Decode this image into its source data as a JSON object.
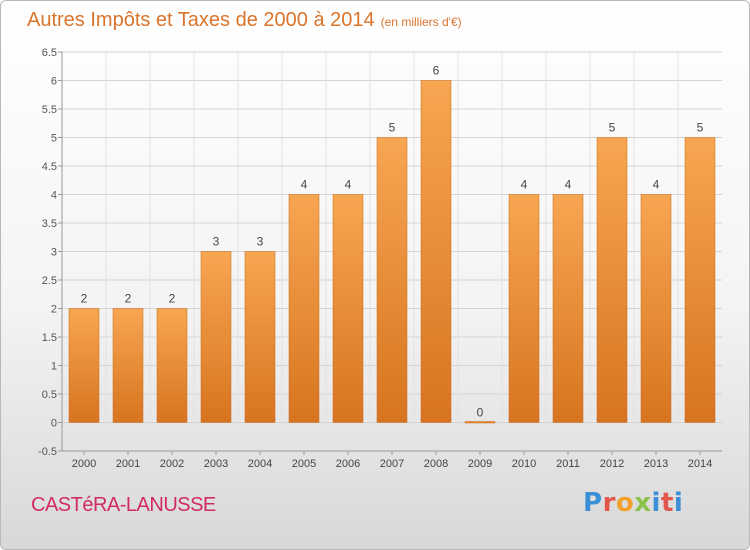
{
  "header": {
    "title": "Autres Impôts et Taxes de 2000 à 2014",
    "unit": "(en milliers d'€)"
  },
  "footer": {
    "commune": "CASTéRA-LANUSSE",
    "logo": "Proxiti"
  },
  "colors": {
    "title": "#d9742c",
    "bar_light": "#f7a651",
    "bar_dark": "#d8741f",
    "commune": "#d22a64"
  },
  "chart_data": {
    "type": "bar",
    "title": "Autres Impôts et Taxes de 2000 à 2014",
    "subtitle": "(en milliers d'€)",
    "xlabel": "",
    "ylabel": "",
    "categories": [
      "2000",
      "2001",
      "2002",
      "2003",
      "2004",
      "2005",
      "2006",
      "2007",
      "2008",
      "2009",
      "2010",
      "2011",
      "2012",
      "2013",
      "2014"
    ],
    "values": [
      2,
      2,
      2,
      3,
      3,
      4,
      4,
      5,
      6,
      0,
      4,
      4,
      5,
      4,
      5
    ],
    "data_labels": [
      "2",
      "2",
      "2",
      "3",
      "3",
      "4",
      "4",
      "5",
      "6",
      "0",
      "4",
      "4",
      "5",
      "4",
      "5"
    ],
    "ylim": [
      -0.5,
      6.5
    ],
    "yticks": [
      "-0.5",
      "0",
      "0.5",
      "1",
      "1.5",
      "2",
      "2.5",
      "3",
      "3.5",
      "4",
      "4.5",
      "5",
      "5.5",
      "6",
      "6.5"
    ],
    "ytick_values": [
      -0.5,
      0,
      0.5,
      1,
      1.5,
      2,
      2.5,
      3,
      3.5,
      4,
      4.5,
      5,
      5.5,
      6,
      6.5
    ],
    "grid": true,
    "legend": "none"
  }
}
